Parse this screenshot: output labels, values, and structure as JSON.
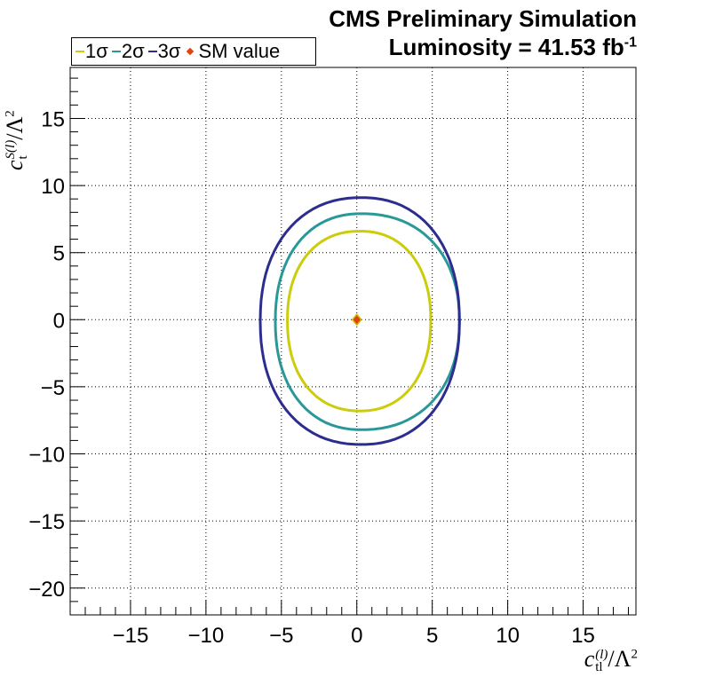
{
  "header": {
    "title_line1": "CMS Preliminary Simulation",
    "title_line2_prefix": "Luminosity = 41.53 fb",
    "title_line2_sup": "-1"
  },
  "legend": [
    {
      "label": "1σ",
      "color": "#cccc0a"
    },
    {
      "label": "2σ",
      "color": "#2a9898"
    },
    {
      "label": "3σ",
      "color": "#2d2d8f"
    },
    {
      "label": "SM value",
      "color": "#e0430e"
    }
  ],
  "axes": {
    "x_title": {
      "base": "c",
      "sub": "tl",
      "sup": "(l)",
      "tail": "/Λ",
      "tail_sup": "2"
    },
    "y_title": {
      "base": "c",
      "sub": "t",
      "sup": "S(l)",
      "tail": "/Λ",
      "tail_sup": "2"
    }
  },
  "chart_data": {
    "type": "contour",
    "xlim": [
      -19,
      18.5
    ],
    "ylim": [
      -22,
      18.8
    ],
    "grid": true,
    "legend_position": "top-left",
    "x_ticks": [
      -15,
      -10,
      -5,
      0,
      5,
      10,
      15
    ],
    "y_ticks": [
      -20,
      -15,
      -10,
      -5,
      0,
      5,
      10,
      15
    ],
    "x_tick_labels": [
      "−15",
      "−10",
      "−5",
      "0",
      "5",
      "10",
      "15"
    ],
    "y_tick_labels": [
      "−20",
      "−15",
      "−10",
      "−5",
      "0",
      "5",
      "10",
      "15"
    ],
    "series": [
      {
        "name": "1σ",
        "color": "#cccc0a",
        "center": [
          0.2,
          -0.05
        ],
        "x_range": [
          -4.6,
          4.9
        ],
        "y_range": [
          -6.8,
          6.6
        ]
      },
      {
        "name": "2σ",
        "color": "#2a9898",
        "center": [
          0.3,
          -0.1
        ],
        "x_range": [
          -5.4,
          6.8
        ],
        "y_range": [
          -8.2,
          7.9
        ]
      },
      {
        "name": "3σ",
        "color": "#2d2d8f",
        "center": [
          0.3,
          -0.1
        ],
        "x_range": [
          -6.4,
          6.8
        ],
        "y_range": [
          -9.3,
          9.1
        ]
      }
    ],
    "sm_value": {
      "name": "SM value",
      "x": 0,
      "y": 0,
      "color": "#e0430e"
    }
  }
}
